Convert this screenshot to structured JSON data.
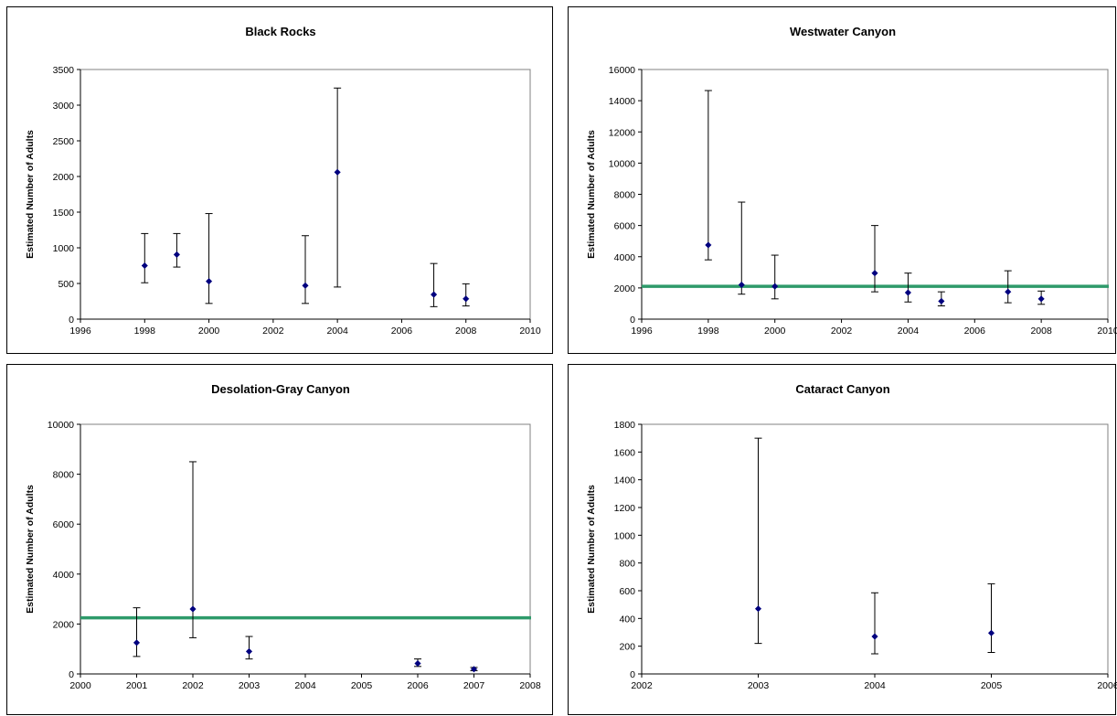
{
  "chart_data": [
    {
      "type": "scatter",
      "title": "Black Rocks",
      "xlabel": "",
      "ylabel": "Estimated Number of Adults",
      "xlim": [
        1996,
        2010
      ],
      "ylim": [
        0,
        3500
      ],
      "xticks": [
        "1996",
        "1998",
        "2000",
        "2002",
        "2004",
        "2006",
        "2008",
        "2010"
      ],
      "yticks": [
        "0",
        "500",
        "1000",
        "1500",
        "2000",
        "2500",
        "3000",
        "3500"
      ],
      "points": [
        {
          "x": 1998,
          "y": 750,
          "low": 510,
          "high": 1200
        },
        {
          "x": 1999,
          "y": 905,
          "low": 730,
          "high": 1200
        },
        {
          "x": 2000,
          "y": 530,
          "low": 220,
          "high": 1480
        },
        {
          "x": 2003,
          "y": 470,
          "low": 220,
          "high": 1170
        },
        {
          "x": 2004,
          "y": 2060,
          "low": 450,
          "high": 3240
        },
        {
          "x": 2007,
          "y": 345,
          "low": 175,
          "high": 780
        },
        {
          "x": 2008,
          "y": 285,
          "low": 185,
          "high": 495
        }
      ],
      "reference_line": null,
      "grid": false,
      "legend": "none"
    },
    {
      "type": "scatter",
      "title": "Westwater Canyon",
      "xlabel": "",
      "ylabel": "Estimated Number of Adults",
      "xlim": [
        1996,
        2010
      ],
      "ylim": [
        0,
        16000
      ],
      "xticks": [
        "1996",
        "1998",
        "2000",
        "2002",
        "2004",
        "2006",
        "2008",
        "2010"
      ],
      "yticks": [
        "0",
        "2000",
        "4000",
        "6000",
        "8000",
        "10000",
        "12000",
        "14000",
        "16000"
      ],
      "points": [
        {
          "x": 1998,
          "y": 4750,
          "low": 3800,
          "high": 14650
        },
        {
          "x": 1999,
          "y": 2200,
          "low": 1600,
          "high": 7500
        },
        {
          "x": 2000,
          "y": 2100,
          "low": 1300,
          "high": 4100
        },
        {
          "x": 2003,
          "y": 2950,
          "low": 1750,
          "high": 6000
        },
        {
          "x": 2004,
          "y": 1700,
          "low": 1100,
          "high": 2950
        },
        {
          "x": 2005,
          "y": 1150,
          "low": 850,
          "high": 1750
        },
        {
          "x": 2007,
          "y": 1750,
          "low": 1050,
          "high": 3100
        },
        {
          "x": 2008,
          "y": 1300,
          "low": 950,
          "high": 1800
        }
      ],
      "reference_line": 2100,
      "grid": false,
      "legend": "none"
    },
    {
      "type": "scatter",
      "title": "Desolation-Gray Canyon",
      "xlabel": "",
      "ylabel": "Estimated Number of Adults",
      "xlim": [
        2000,
        2008
      ],
      "ylim": [
        0,
        10000
      ],
      "xticks": [
        "2000",
        "2001",
        "2002",
        "2003",
        "2004",
        "2005",
        "2006",
        "2007",
        "2008"
      ],
      "yticks": [
        "0",
        "2000",
        "4000",
        "6000",
        "8000",
        "10000"
      ],
      "points": [
        {
          "x": 2001,
          "y": 1250,
          "low": 700,
          "high": 2650
        },
        {
          "x": 2002,
          "y": 2600,
          "low": 1450,
          "high": 8500
        },
        {
          "x": 2003,
          "y": 900,
          "low": 600,
          "high": 1500
        },
        {
          "x": 2006,
          "y": 420,
          "low": 300,
          "high": 600
        },
        {
          "x": 2007,
          "y": 190,
          "low": 130,
          "high": 260
        }
      ],
      "reference_line": 2250,
      "grid": false,
      "legend": "none"
    },
    {
      "type": "scatter",
      "title": "Cataract Canyon",
      "xlabel": "",
      "ylabel": "Estimated Number of Adults",
      "xlim": [
        2002,
        2006
      ],
      "ylim": [
        0,
        1800
      ],
      "xticks": [
        "2002",
        "2003",
        "2004",
        "2005",
        "2006"
      ],
      "yticks": [
        "0",
        "200",
        "400",
        "600",
        "800",
        "1000",
        "1200",
        "1400",
        "1600",
        "1800"
      ],
      "points": [
        {
          "x": 2003,
          "y": 470,
          "low": 220,
          "high": 1700
        },
        {
          "x": 2004,
          "y": 270,
          "low": 145,
          "high": 585
        },
        {
          "x": 2005,
          "y": 295,
          "low": 155,
          "high": 650
        }
      ],
      "reference_line": null,
      "grid": false,
      "legend": "none"
    }
  ],
  "colors": {
    "marker": "#00007f",
    "error_bar": "#000000",
    "reference_line": "#2e9a6a",
    "axis": "#808080"
  }
}
